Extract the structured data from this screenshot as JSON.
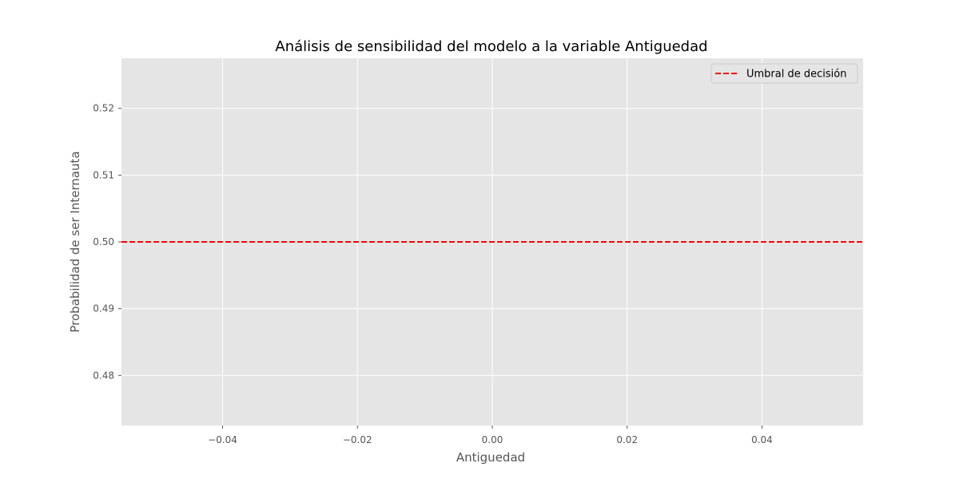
{
  "chart_data": {
    "type": "line",
    "title": "Análisis de sensibilidad del modelo a la variable Antiguedad",
    "xlabel": "Antiguedad",
    "ylabel": "Probabilidad de ser Internauta",
    "xlim": [
      -0.055,
      0.055
    ],
    "ylim": [
      0.4725,
      0.5275
    ],
    "x_ticks": [
      -0.04,
      -0.02,
      0.0,
      0.02,
      0.04
    ],
    "x_tick_labels": [
      "−0.04",
      "−0.02",
      "0.00",
      "0.02",
      "0.04"
    ],
    "y_ticks": [
      0.48,
      0.49,
      0.5,
      0.51,
      0.52
    ],
    "y_tick_labels": [
      "0.48",
      "0.49",
      "0.50",
      "0.51",
      "0.52"
    ],
    "grid": true,
    "legend_position": "top-right",
    "series": [],
    "reference_lines": [
      {
        "orientation": "horizontal",
        "y": 0.5,
        "name": "Umbral de decisión",
        "color": "#ff0000",
        "style": "dashed"
      }
    ],
    "colors": {
      "plot_background": "#e5e5e5",
      "grid": "#ffffff",
      "threshold": "#ff0000"
    }
  }
}
